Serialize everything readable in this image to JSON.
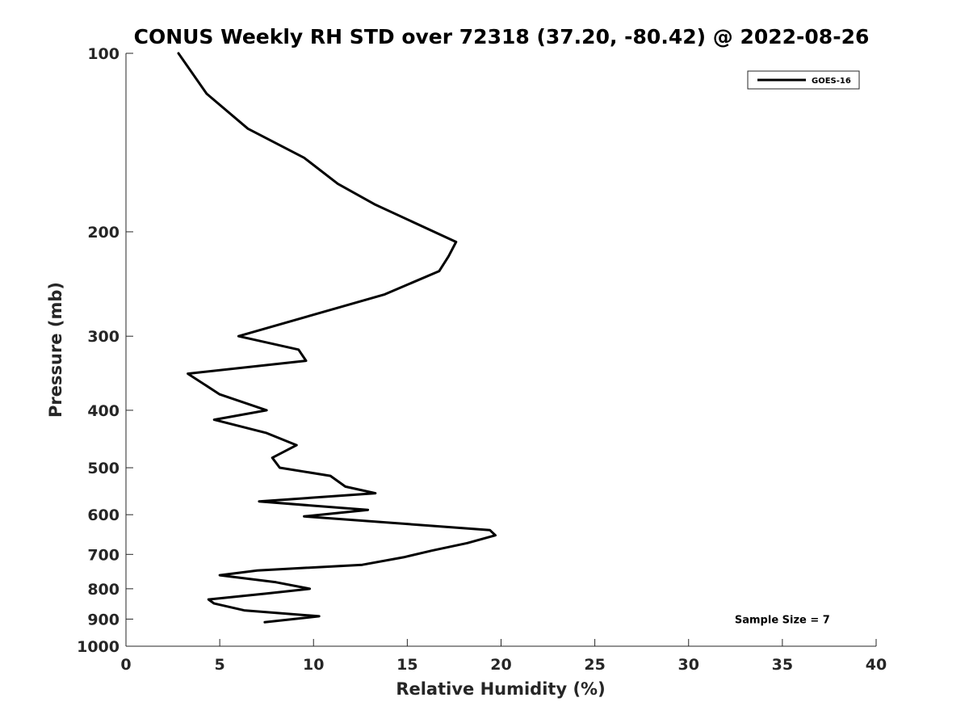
{
  "chart_data": {
    "type": "line",
    "title": "CONUS Weekly RH STD over 72318 (37.20, -80.42) @ 2022-08-26",
    "xlabel": "Relative Humidity (%)",
    "ylabel": "Pressure (mb)",
    "xlim": [
      0,
      40
    ],
    "ylim": [
      100,
      1000
    ],
    "y_scale": "log",
    "y_direction": "reversed",
    "x_ticks": [
      0,
      5,
      10,
      15,
      20,
      25,
      30,
      35,
      40
    ],
    "y_ticks": [
      100,
      200,
      300,
      400,
      500,
      600,
      700,
      800,
      900,
      1000
    ],
    "grid": false,
    "legend_position": "top-right",
    "series": [
      {
        "name": "GOES-16",
        "color": "#000000",
        "x": [
          2.8,
          4.3,
          6.5,
          9.5,
          11.3,
          13.3,
          17.6,
          17.2,
          16.7,
          13.8,
          6.0,
          9.2,
          9.6,
          3.3,
          5.0,
          7.5,
          4.7,
          7.5,
          9.1,
          7.8,
          8.2,
          10.9,
          11.7,
          13.3,
          7.1,
          12.9,
          9.5,
          19.4,
          19.7,
          18.2,
          16.3,
          14.8,
          12.6,
          7.0,
          5.0,
          8.0,
          9.8,
          7.5,
          4.4,
          4.7,
          6.3,
          10.3,
          7.4
        ],
        "y": [
          100,
          117,
          134,
          150,
          166,
          180,
          208,
          220,
          233,
          255,
          300,
          316,
          330,
          347,
          376,
          400,
          415,
          437,
          458,
          481,
          500,
          516,
          538,
          552,
          570,
          589,
          604,
          637,
          650,
          670,
          690,
          708,
          729,
          745,
          759,
          780,
          800,
          815,
          834,
          847,
          870,
          890,
          911
        ]
      }
    ],
    "annotations": [
      {
        "text": "Sample Size = 7",
        "x": 35.0,
        "y": 900
      }
    ]
  }
}
